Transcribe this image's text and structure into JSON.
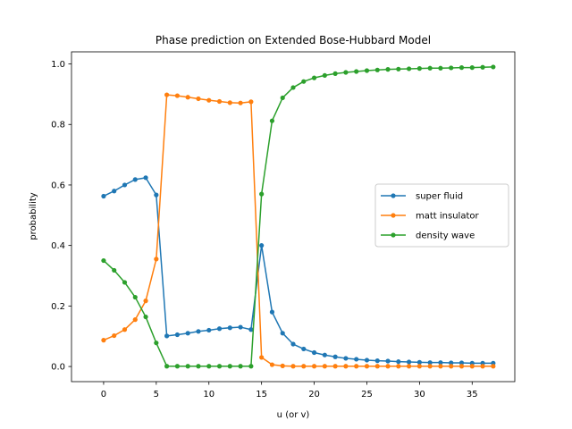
{
  "chart_data": {
    "type": "line",
    "title": "Phase prediction on Extended Bose-Hubbard Model",
    "xlabel": "u (or v)",
    "ylabel": "probability",
    "xlim": [
      -3.05,
      39.05
    ],
    "ylim": [
      -0.05,
      1.04
    ],
    "xticks": [
      0,
      5,
      10,
      15,
      20,
      25,
      30,
      35
    ],
    "yticks": [
      0.0,
      0.2,
      0.4,
      0.6,
      0.8,
      1.0
    ],
    "ytick_labels": [
      "0.0",
      "0.2",
      "0.4",
      "0.6",
      "0.8",
      "1.0"
    ],
    "grid": false,
    "legend_position": "center-right",
    "x": [
      0,
      1,
      2,
      3,
      4,
      5,
      6,
      7,
      8,
      9,
      10,
      11,
      12,
      13,
      14,
      15,
      16,
      17,
      18,
      19,
      20,
      21,
      22,
      23,
      24,
      25,
      26,
      27,
      28,
      29,
      30,
      31,
      32,
      33,
      34,
      35,
      36,
      37
    ],
    "series": [
      {
        "name": "super fluid",
        "color": "#1f77b4",
        "values": [
          0.563,
          0.58,
          0.6,
          0.618,
          0.624,
          0.567,
          0.101,
          0.105,
          0.11,
          0.116,
          0.12,
          0.125,
          0.128,
          0.13,
          0.122,
          0.4,
          0.18,
          0.11,
          0.074,
          0.058,
          0.046,
          0.038,
          0.032,
          0.027,
          0.024,
          0.021,
          0.019,
          0.018,
          0.016,
          0.015,
          0.014,
          0.013,
          0.013,
          0.012,
          0.012,
          0.011,
          0.011,
          0.011
        ]
      },
      {
        "name": "matt insulator",
        "color": "#ff7f0e",
        "values": [
          0.087,
          0.102,
          0.122,
          0.155,
          0.217,
          0.355,
          0.898,
          0.895,
          0.89,
          0.885,
          0.88,
          0.876,
          0.872,
          0.871,
          0.875,
          0.03,
          0.006,
          0.002,
          0.001,
          0.001,
          0.001,
          0.001,
          0.001,
          0.001,
          0.001,
          0.001,
          0.001,
          0.001,
          0.001,
          0.001,
          0.001,
          0.001,
          0.001,
          0.001,
          0.001,
          0.001,
          0.001,
          0.001
        ]
      },
      {
        "name": "density wave",
        "color": "#2ca02c",
        "values": [
          0.35,
          0.318,
          0.278,
          0.229,
          0.164,
          0.078,
          0.001,
          0.001,
          0.001,
          0.001,
          0.001,
          0.001,
          0.001,
          0.001,
          0.001,
          0.57,
          0.812,
          0.888,
          0.922,
          0.942,
          0.954,
          0.962,
          0.968,
          0.972,
          0.975,
          0.978,
          0.98,
          0.982,
          0.983,
          0.984,
          0.985,
          0.986,
          0.986,
          0.987,
          0.988,
          0.988,
          0.989,
          0.99
        ]
      }
    ]
  }
}
